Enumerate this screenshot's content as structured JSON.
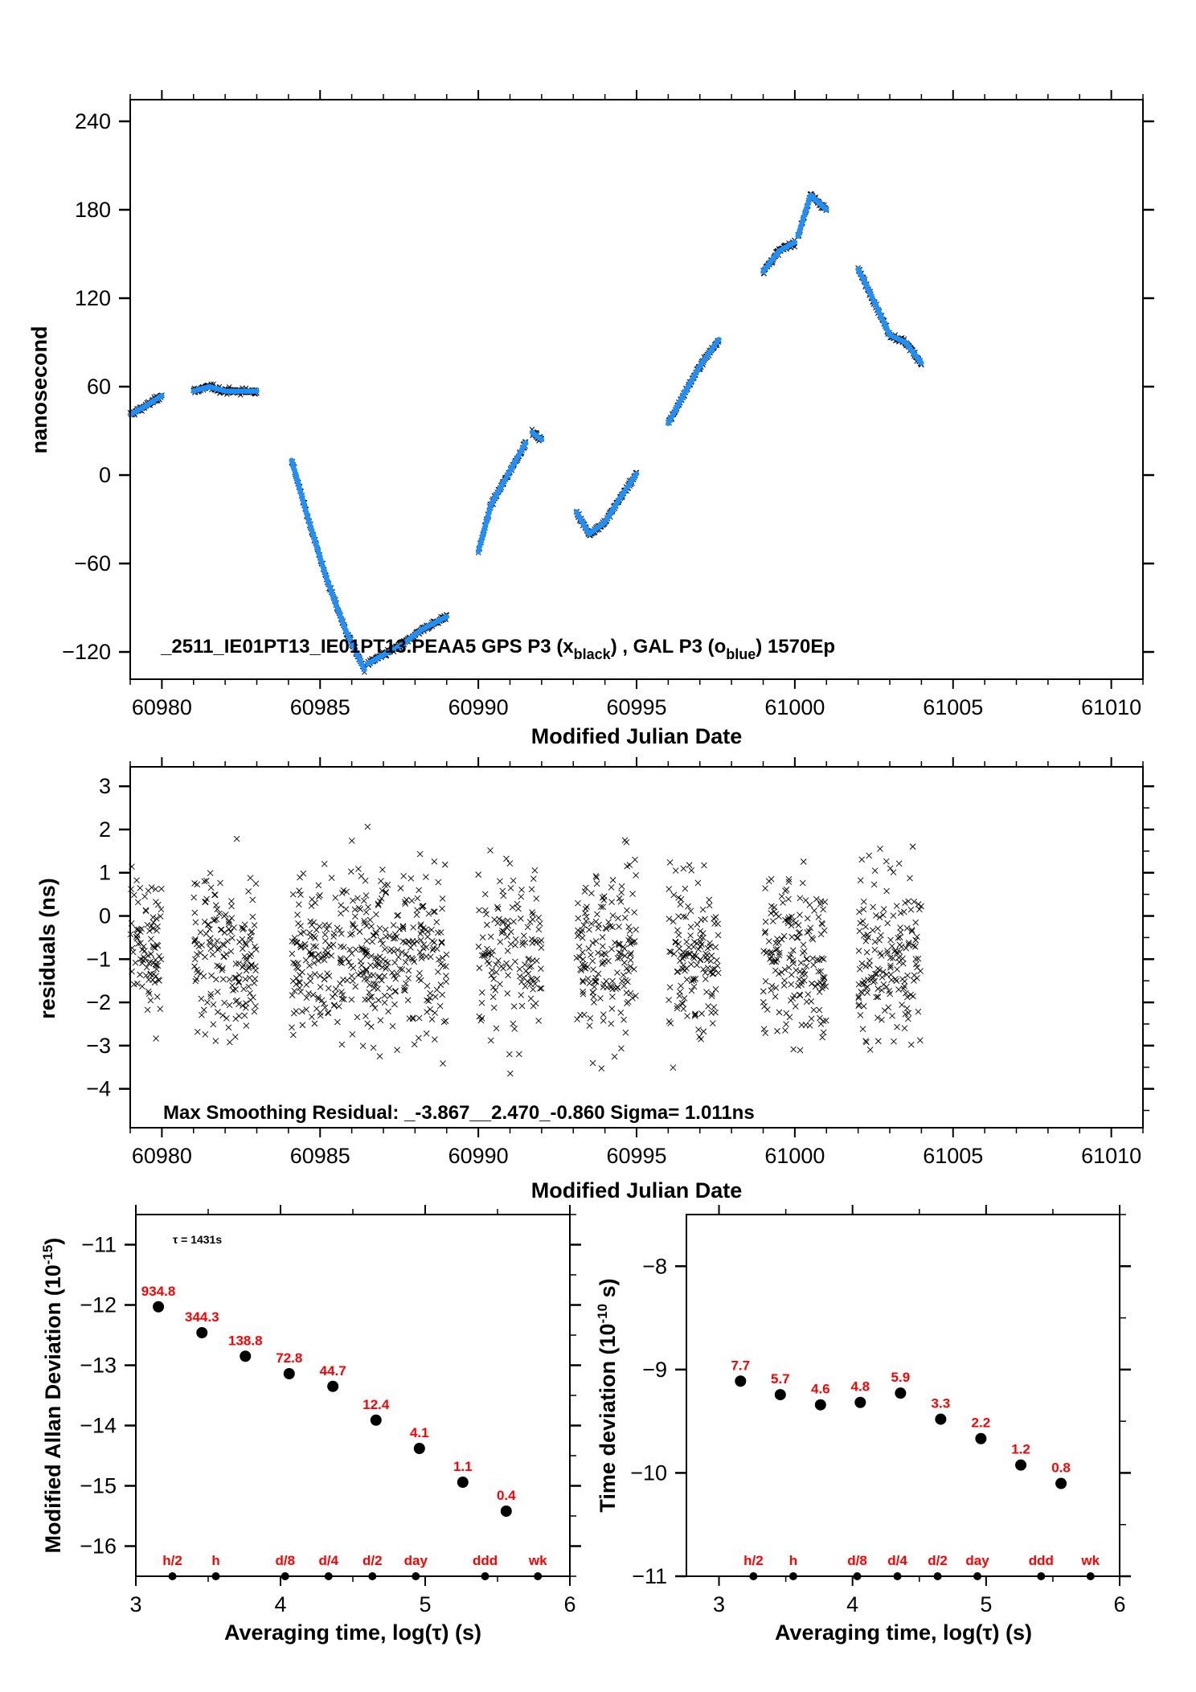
{
  "chart_data": [
    {
      "id": "time-series",
      "type": "scatter",
      "title": "",
      "xlabel": "Modified Julian Date",
      "ylabel": "nanosecond",
      "xlim": [
        60979,
        61011
      ],
      "ylim": [
        -138.5,
        254.7
      ],
      "xticks": [
        60980,
        60985,
        60990,
        60995,
        61000,
        61005,
        61010
      ],
      "xtick_labels": [
        "60980",
        "60985",
        "60990",
        "60995",
        "61000",
        "61005",
        "61010"
      ],
      "yticks": [
        -120,
        -60,
        0,
        60,
        120,
        180,
        240
      ],
      "ytick_labels": [
        "−120",
        "−60",
        "0",
        "60",
        "120",
        "180",
        "240"
      ],
      "annotation": {
        "prefix": "_2511_IE01PT13_IE01PT13.PEAA5    GPS P3 (x",
        "sub1": "black",
        "middle": ") ,  GAL P3 (o",
        "sub2": "blue",
        "suffix": ")  1570Ep"
      },
      "series": [
        {
          "name": "GPS P3",
          "marker": "x",
          "color": "#000000"
        },
        {
          "name": "GAL P3",
          "marker": "o",
          "color": "#1e90ff"
        }
      ],
      "segments": [
        [
          [
            60979.0,
            41
          ],
          [
            60979.5,
            47
          ],
          [
            60980.0,
            54
          ]
        ],
        [
          [
            60981.0,
            57
          ],
          [
            60981.5,
            60
          ],
          [
            60982.0,
            57
          ],
          [
            60982.5,
            57
          ],
          [
            60983.0,
            57
          ]
        ],
        [
          [
            60984.1,
            10
          ],
          [
            60984.6,
            -28
          ],
          [
            60985.2,
            -70
          ],
          [
            60985.8,
            -105
          ],
          [
            60986.4,
            -132
          ]
        ],
        [
          [
            60986.5,
            -128
          ],
          [
            60987.0,
            -122
          ],
          [
            60987.6,
            -115
          ],
          [
            60988.2,
            -105
          ],
          [
            60989.0,
            -96
          ]
        ],
        [
          [
            60990.0,
            -52
          ],
          [
            60990.4,
            -20
          ],
          [
            60990.8,
            -5
          ],
          [
            60991.5,
            22
          ]
        ],
        [
          [
            60991.7,
            29
          ],
          [
            60992.0,
            24
          ]
        ],
        [
          [
            60993.1,
            -25
          ],
          [
            60993.5,
            -40
          ],
          [
            60994.0,
            -32
          ],
          [
            60994.5,
            -15
          ],
          [
            60995.0,
            1
          ]
        ],
        [
          [
            60996.0,
            35
          ],
          [
            60996.5,
            55
          ],
          [
            60997.0,
            74
          ],
          [
            60997.6,
            92
          ]
        ],
        [
          [
            60999.0,
            138
          ],
          [
            60999.5,
            152
          ],
          [
            61000.0,
            158
          ]
        ],
        [
          [
            61000.1,
            162
          ],
          [
            61000.5,
            190
          ],
          [
            61001.0,
            180
          ]
        ],
        [
          [
            61002.0,
            140
          ],
          [
            61002.5,
            118
          ],
          [
            61003.0,
            95
          ],
          [
            61003.5,
            90
          ],
          [
            61004.0,
            76
          ]
        ]
      ]
    },
    {
      "id": "residuals",
      "type": "scatter",
      "title": "",
      "xlabel": "Modified Julian Date",
      "ylabel": "residuals (ns)",
      "xlim": [
        60979,
        61011
      ],
      "ylim": [
        -4.9,
        3.45
      ],
      "xticks": [
        60980,
        60985,
        60990,
        60995,
        61000,
        61005,
        61010
      ],
      "xtick_labels": [
        "60980",
        "60985",
        "60990",
        "60995",
        "61000",
        "61005",
        "61010"
      ],
      "yticks": [
        -4,
        -3,
        -2,
        -1,
        0,
        1,
        2,
        3
      ],
      "ytick_labels": [
        "−4",
        "−3",
        "−2",
        "−1",
        "0",
        "1",
        "2",
        "3"
      ],
      "annotation": "Max Smoothing Residual: _-3.867__2.470_-0.860  Sigma= 1.011ns",
      "stats": {
        "min": -3.867,
        "max": 2.47,
        "mean": -0.86,
        "sigma": 1.011
      },
      "marker": "x",
      "clusters": [
        {
          "x": [
            60979.0,
            60980.0
          ],
          "n": 90
        },
        {
          "x": [
            60981.0,
            60983.0
          ],
          "n": 170
        },
        {
          "x": [
            60984.1,
            60989.0
          ],
          "n": 420
        },
        {
          "x": [
            60990.0,
            60992.0
          ],
          "n": 140
        },
        {
          "x": [
            60993.1,
            60995.0
          ],
          "n": 170
        },
        {
          "x": [
            60996.0,
            60997.6
          ],
          "n": 140
        },
        {
          "x": [
            60999.0,
            61001.0
          ],
          "n": 170
        },
        {
          "x": [
            61002.0,
            61004.0
          ],
          "n": 170
        }
      ]
    },
    {
      "id": "mod-allan-deviation",
      "type": "scatter",
      "xlabel": "Averaging time, log(τ) (s)",
      "ylabel_main": "Modified Allan Deviation (10",
      "ylabel_sup": "-15",
      "ylabel_end": ")",
      "xlim": [
        3,
        6
      ],
      "ylim": [
        -16.5,
        -10.5
      ],
      "xticks": [
        3,
        4,
        5,
        6
      ],
      "xtick_labels": [
        "3",
        "4",
        "5",
        "6"
      ],
      "yticks": [
        -16,
        -15,
        -14,
        -13,
        -12,
        -11
      ],
      "ytick_labels": [
        "−16",
        "−15",
        "−14",
        "−13",
        "−12",
        "−11"
      ],
      "annotation": "τ = 1431s",
      "points": [
        {
          "x": 3.156,
          "y": -12.03,
          "label": "934.8"
        },
        {
          "x": 3.457,
          "y": -12.46,
          "label": "344.3"
        },
        {
          "x": 3.757,
          "y": -12.85,
          "label": "138.8"
        },
        {
          "x": 4.06,
          "y": -13.14,
          "label": "72.8"
        },
        {
          "x": 4.362,
          "y": -13.35,
          "label": "44.7"
        },
        {
          "x": 4.66,
          "y": -13.91,
          "label": "12.4"
        },
        {
          "x": 4.96,
          "y": -14.38,
          "label": "4.1"
        },
        {
          "x": 5.26,
          "y": -14.94,
          "label": "1.1"
        },
        {
          "x": 5.56,
          "y": -15.42,
          "label": "0.4"
        }
      ],
      "time_markers": [
        {
          "x": 3.253,
          "label": "h/2"
        },
        {
          "x": 3.553,
          "label": "h"
        },
        {
          "x": 4.032,
          "label": "d/8"
        },
        {
          "x": 4.332,
          "label": "d/4"
        },
        {
          "x": 4.635,
          "label": "d/2"
        },
        {
          "x": 4.935,
          "label": "day"
        },
        {
          "x": 5.414,
          "label": "ddd"
        },
        {
          "x": 5.779,
          "label": "wk"
        }
      ]
    },
    {
      "id": "time-deviation",
      "type": "scatter",
      "xlabel": "Averaging time, log(τ) (s)",
      "ylabel_main": "Time deviation (10",
      "ylabel_sup": "-10",
      "ylabel_end": " s)",
      "xlim": [
        2.756,
        6
      ],
      "ylim": [
        -11,
        -7.5
      ],
      "xticks": [
        3,
        4,
        5,
        6
      ],
      "xtick_labels": [
        "3",
        "4",
        "5",
        "6"
      ],
      "yticks": [
        -11,
        -10,
        -9,
        -8
      ],
      "ytick_labels": [
        "−11",
        "−10",
        "−9",
        "−8"
      ],
      "points": [
        {
          "x": 3.161,
          "y": -9.112,
          "label": "7.7"
        },
        {
          "x": 3.459,
          "y": -9.243,
          "label": "5.7"
        },
        {
          "x": 3.76,
          "y": -9.341,
          "label": "4.6"
        },
        {
          "x": 4.058,
          "y": -9.318,
          "label": "4.8"
        },
        {
          "x": 4.359,
          "y": -9.228,
          "label": "5.9"
        },
        {
          "x": 4.66,
          "y": -9.48,
          "label": "3.3"
        },
        {
          "x": 4.961,
          "y": -9.668,
          "label": "2.2"
        },
        {
          "x": 5.26,
          "y": -9.924,
          "label": "1.2"
        },
        {
          "x": 5.561,
          "y": -10.102,
          "label": "0.8"
        }
      ],
      "time_markers": [
        {
          "x": 3.258,
          "label": "h/2"
        },
        {
          "x": 3.556,
          "label": "h"
        },
        {
          "x": 4.035,
          "label": "d/8"
        },
        {
          "x": 4.336,
          "label": "d/4"
        },
        {
          "x": 4.637,
          "label": "d/2"
        },
        {
          "x": 4.935,
          "label": "day"
        },
        {
          "x": 5.412,
          "label": "ddd"
        },
        {
          "x": 5.782,
          "label": "wk"
        }
      ]
    }
  ],
  "colors": {
    "gps": "#000000",
    "gal": "#1e90ff",
    "label_red": "#ff0000",
    "axis": "#000000"
  }
}
